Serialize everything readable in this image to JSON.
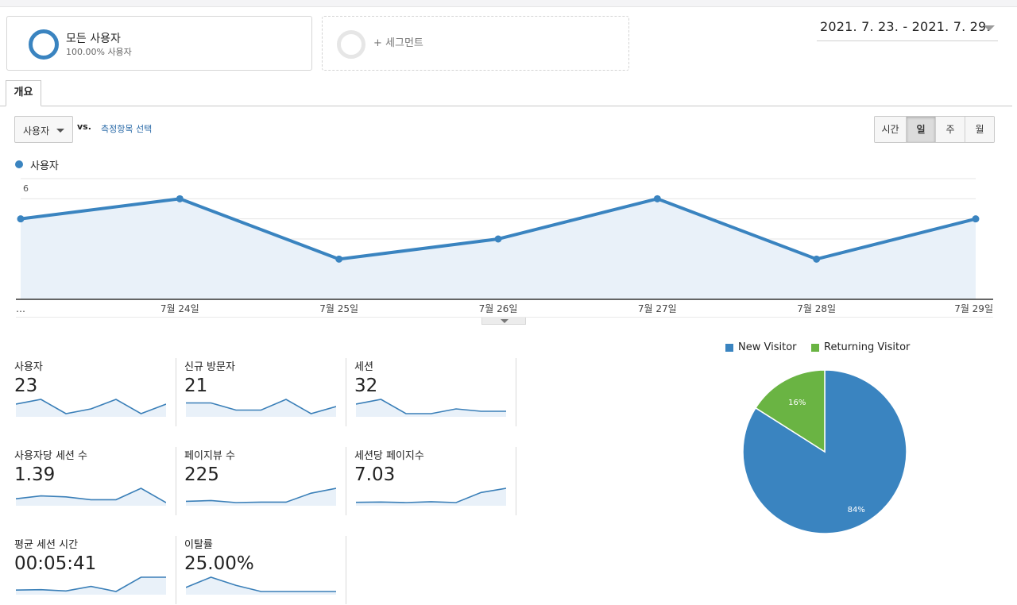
{
  "segments": [
    {
      "title": "모든 사용자",
      "subtitle": "100.00% 사용자"
    },
    {
      "title": "+ 세그먼트"
    }
  ],
  "date_range": "2021. 7. 23. - 2021. 7. 29.",
  "tab": "개요",
  "toolbar": {
    "metric": "사용자",
    "vs": "vs.",
    "compare_link": "측정항목 선택",
    "periods": [
      "시간",
      "일",
      "주",
      "월"
    ],
    "active_period": "일"
  },
  "colors": {
    "accent": "#3a84c0",
    "returning": "#6ab443",
    "link": "#2a6aa8"
  },
  "chart_data": [
    {
      "type": "area",
      "series": [
        {
          "name": "사용자",
          "values": [
            4,
            5,
            2,
            3,
            5,
            2,
            4
          ]
        }
      ],
      "x": [
        "…",
        "7월 24일",
        "7월 25일",
        "7월 26일",
        "7월 27일",
        "7월 28일",
        "7월 29일"
      ],
      "yticks": [
        2,
        4,
        6
      ],
      "ylim": [
        0,
        6
      ],
      "grid": true,
      "legend": "top-left"
    },
    {
      "type": "pie",
      "categories": [
        "New Visitor",
        "Returning Visitor"
      ],
      "values": [
        84,
        16
      ],
      "labels": [
        "84%",
        "16%"
      ],
      "legend": "top"
    }
  ],
  "metrics": [
    {
      "label": "사용자",
      "value": "23",
      "spark": [
        4,
        5,
        2,
        3,
        5,
        2,
        4
      ]
    },
    {
      "label": "신규 방문자",
      "value": "21",
      "spark": [
        4,
        4,
        2,
        2,
        5,
        1,
        3
      ]
    },
    {
      "label": "세션",
      "value": "32",
      "spark": [
        5,
        6,
        3,
        3,
        4,
        3.5,
        3.5
      ]
    },
    {
      "label": "사용자당 세션 수",
      "value": "1.39",
      "spark": [
        1.25,
        1.4,
        1.35,
        1.2,
        1.2,
        1.8,
        1.05
      ]
    },
    {
      "label": "페이지뷰 수",
      "value": "225",
      "spark": [
        18,
        20,
        15,
        16,
        16,
        38,
        50
      ]
    },
    {
      "label": "세션당 페이지수",
      "value": "7.03",
      "spark": [
        4.5,
        4.6,
        4.4,
        4.7,
        4.4,
        8,
        9.5
      ]
    },
    {
      "label": "평균 세션 시간",
      "value": "00:05:41",
      "spark": [
        3,
        3.2,
        2.5,
        5,
        2.2,
        10,
        10
      ]
    },
    {
      "label": "이탈률",
      "value": "25.00%",
      "spark": [
        20,
        45,
        25,
        10,
        10,
        10,
        10
      ]
    }
  ]
}
